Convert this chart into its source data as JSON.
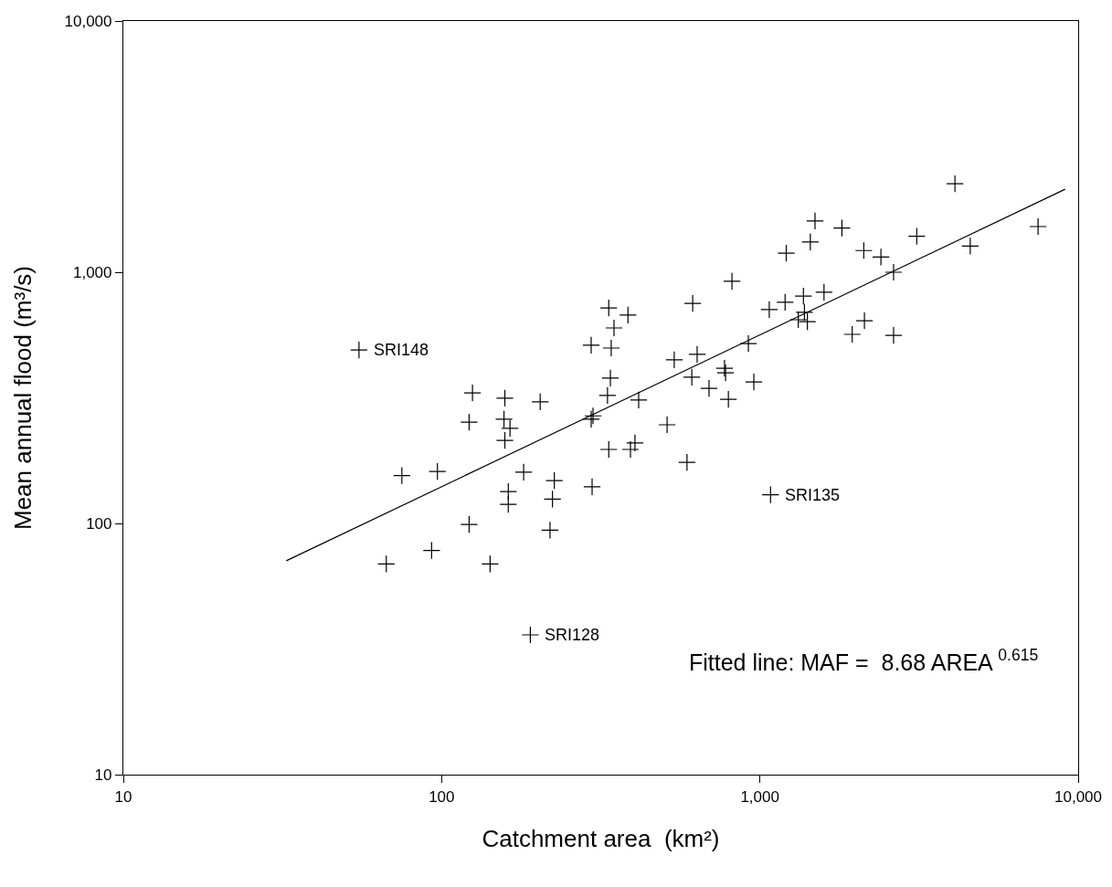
{
  "chart_data": {
    "type": "scatter",
    "xlabel": "Catchment area  (km²)",
    "ylabel": "Mean annual flood (m³/s)",
    "log": "xy",
    "xlim": [
      10,
      10000
    ],
    "ylim": [
      10,
      10000
    ],
    "xticks": [
      10,
      100,
      {
        "value": 1000,
        "label": "1,000"
      },
      {
        "value": 10000,
        "label": "10,000"
      }
    ],
    "yticks": [
      10,
      100,
      {
        "value": 1000,
        "label": "1,000"
      },
      {
        "value": 10000,
        "label": "10,000"
      }
    ],
    "series": [
      {
        "marker": "cross",
        "color": "#000000",
        "x": [
          55,
          67,
          75,
          93,
          97,
          122,
          122,
          125,
          142,
          157,
          158,
          164,
          158,
          162,
          162,
          181,
          190,
          204,
          219,
          223,
          226,
          295,
          295,
          299,
          297,
          332,
          335,
          335,
          339,
          341,
          348,
          385,
          392,
          405,
          416,
          511,
          538,
          4100,
          1490,
          1810,
          1440,
          7480,
          3110,
          1210,
          2120,
          2400,
          4580,
          2630,
          817,
          615,
          1370,
          1590,
          1200,
          1070,
          1380,
          1320,
          1410,
          2130,
          1950,
          2630,
          920,
          635,
          774,
          780,
          611,
          692,
          957,
          796,
          590,
          1080
        ],
        "values": [
          490,
          69,
          155,
          78,
          161,
          253,
          99,
          331,
          69,
          260,
          315,
          239,
          214,
          134,
          119,
          160,
          36,
          305,
          94,
          125,
          148,
          512,
          260,
          268,
          140,
          323,
          721,
          197,
          379,
          499,
          600,
          675,
          197,
          209,
          310,
          247,
          448,
          2250,
          1600,
          1500,
          1320,
          1520,
          1390,
          1190,
          1220,
          1150,
          1270,
          1000,
          920,
          752,
          804,
          832,
          759,
          710,
          692,
          647,
          636,
          641,
          566,
          561,
          520,
          471,
          415,
          398,
          382,
          345,
          366,
          312,
          175,
          130
        ]
      },
      {
        "type": "line",
        "marker": "none",
        "color": "#000000",
        "x": [
          32.5,
          9100
        ],
        "values": [
          71,
          2140
        ]
      }
    ],
    "annotations": [
      {
        "text": "SRI148",
        "x": 55,
        "y": 490
      },
      {
        "text": "SRI128",
        "x": 190,
        "y": 36
      },
      {
        "text": "SRI135",
        "x": 1080,
        "y": 130
      },
      "Fitted line: MAF =  8.68 AREA $^{0.615}$"
    ]
  }
}
